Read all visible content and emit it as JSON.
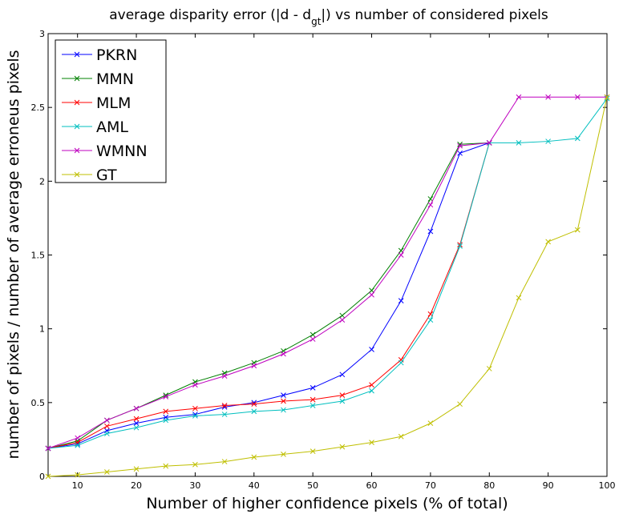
{
  "chart_data": {
    "type": "line",
    "title": {
      "main": "average disparity error (|d - d",
      "sub": "gt",
      "tail": "|) vs number of considered pixels"
    },
    "xlabel": "Number of higher confidence pixels (% of total)",
    "ylabel": "number of pixels / number of average erroneus pixels",
    "xlim": [
      5,
      100
    ],
    "ylim": [
      0,
      3
    ],
    "xticks": [
      10,
      20,
      30,
      40,
      50,
      60,
      70,
      80,
      90,
      100
    ],
    "yticks": [
      0,
      0.5,
      1,
      1.5,
      2,
      2.5,
      3
    ],
    "grid": false,
    "legend_position": "top-left",
    "marker": "x",
    "x": [
      5,
      10,
      15,
      20,
      25,
      30,
      35,
      40,
      45,
      50,
      55,
      60,
      65,
      70,
      75,
      80,
      85,
      90,
      95,
      100
    ],
    "series": [
      {
        "name": "PKRN",
        "color": "#0000ff",
        "x": [
          5,
          10,
          15,
          20,
          25,
          30,
          35,
          40,
          45,
          50,
          55,
          60,
          65,
          70,
          75,
          80
        ],
        "values": [
          0.19,
          0.22,
          0.31,
          0.36,
          0.4,
          0.42,
          0.47,
          0.5,
          0.55,
          0.6,
          0.69,
          0.86,
          1.19,
          1.66,
          2.19,
          2.26
        ]
      },
      {
        "name": "MMN",
        "color": "#008000",
        "x": [
          5,
          10,
          15,
          20,
          25,
          30,
          35,
          40,
          45,
          50,
          55,
          60,
          65,
          70,
          75,
          80
        ],
        "values": [
          0.19,
          0.24,
          0.38,
          0.46,
          0.55,
          0.64,
          0.7,
          0.77,
          0.85,
          0.96,
          1.09,
          1.26,
          1.53,
          1.88,
          2.25,
          2.26
        ]
      },
      {
        "name": "MLM",
        "color": "#ff0000",
        "x": [
          5,
          10,
          15,
          20,
          25,
          30,
          35,
          40,
          45,
          50,
          55,
          60,
          65,
          70,
          75,
          80
        ],
        "values": [
          0.19,
          0.23,
          0.34,
          0.39,
          0.44,
          0.46,
          0.48,
          0.49,
          0.51,
          0.52,
          0.55,
          0.62,
          0.79,
          1.1,
          1.57,
          2.26
        ]
      },
      {
        "name": "AML",
        "color": "#00bfbf",
        "x": [
          5,
          10,
          15,
          20,
          25,
          30,
          35,
          40,
          45,
          50,
          55,
          60,
          65,
          70,
          75,
          80,
          85,
          90,
          95,
          100
        ],
        "values": [
          0.19,
          0.21,
          0.29,
          0.33,
          0.38,
          0.41,
          0.42,
          0.44,
          0.45,
          0.48,
          0.51,
          0.58,
          0.77,
          1.06,
          1.56,
          2.26,
          2.26,
          2.27,
          2.29,
          2.56
        ]
      },
      {
        "name": "WMNN",
        "color": "#bf00bf",
        "x": [
          5,
          10,
          15,
          20,
          25,
          30,
          35,
          40,
          45,
          50,
          55,
          60,
          65,
          70,
          75,
          80,
          85,
          90,
          95,
          100
        ],
        "values": [
          0.19,
          0.26,
          0.38,
          0.46,
          0.54,
          0.62,
          0.68,
          0.75,
          0.83,
          0.93,
          1.06,
          1.23,
          1.5,
          1.84,
          2.24,
          2.26,
          2.57,
          2.57,
          2.57,
          2.57
        ]
      },
      {
        "name": "GT",
        "color": "#bfbf00",
        "x": [
          5,
          10,
          15,
          20,
          25,
          30,
          35,
          40,
          45,
          50,
          55,
          60,
          65,
          70,
          75,
          80,
          85,
          90,
          95,
          100
        ],
        "values": [
          0.0,
          0.01,
          0.03,
          0.05,
          0.07,
          0.08,
          0.1,
          0.13,
          0.15,
          0.17,
          0.2,
          0.23,
          0.27,
          0.36,
          0.49,
          0.73,
          1.21,
          1.59,
          1.67,
          2.57
        ]
      }
    ]
  }
}
